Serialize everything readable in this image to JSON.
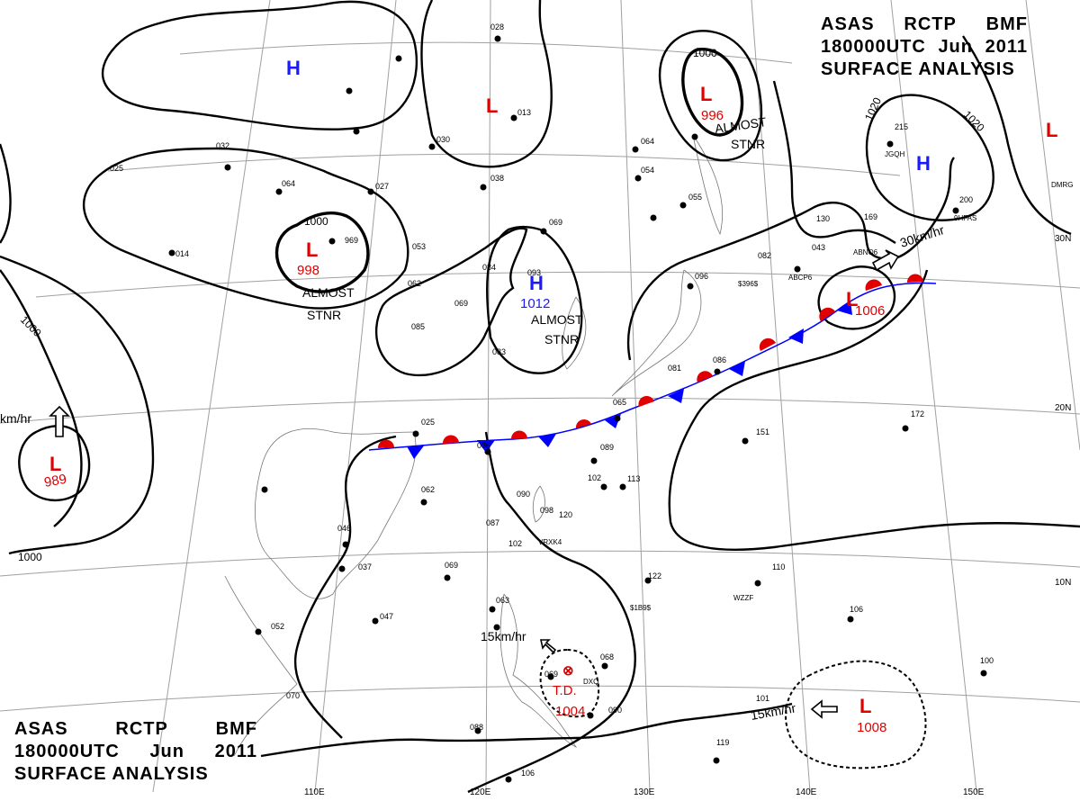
{
  "header": {
    "line1": [
      "ASAS",
      "RCTP",
      "BMF"
    ],
    "line2": [
      "180000UTC",
      "Jun",
      "2011"
    ],
    "line3": "SURFACE ANALYSIS"
  },
  "colors": {
    "high": "#1a1aff",
    "low": "#e00000",
    "warm_front": "#e00000",
    "cold_front": "#0000ff",
    "isobar": "#000000",
    "grid": "#999999"
  },
  "pressure_systems": [
    {
      "type": "H",
      "pressure": "",
      "label": "H"
    },
    {
      "type": "L",
      "pressure": "",
      "label": "L"
    },
    {
      "type": "L",
      "pressure": "996",
      "label": "L"
    },
    {
      "type": "H",
      "pressure": "",
      "label": "H"
    },
    {
      "type": "L",
      "pressure": "",
      "label": "L"
    },
    {
      "type": "L",
      "pressure": "998",
      "label": "L"
    },
    {
      "type": "H",
      "pressure": "1012",
      "label": "H"
    },
    {
      "type": "L",
      "pressure": "1006",
      "label": "L"
    },
    {
      "type": "L",
      "pressure": "989",
      "label": "L"
    },
    {
      "type": "TD",
      "pressure": "1004",
      "label": "T.D."
    },
    {
      "type": "L",
      "pressure": "1008",
      "label": "L"
    }
  ],
  "annotations": {
    "almost_stnr_1": [
      "ALMOST",
      "STNR"
    ],
    "almost_stnr_2": [
      "ALMOST",
      "STNR"
    ],
    "almost_stnr_3": [
      "ALMOST",
      "STNR"
    ],
    "speed_ne": "30km/hr",
    "speed_w": "km/hr",
    "speed_td": "15km/hr",
    "speed_se": "15km/hr"
  },
  "isobar_labels": [
    "1000",
    "1000",
    "1000",
    "1020",
    "1020",
    "1000",
    "1000"
  ],
  "longitude_labels": [
    "110E",
    "120E",
    "130E",
    "140E",
    "150E"
  ],
  "latitude_labels": [
    "30N",
    "20N",
    "10N"
  ],
  "station_numbers": [
    "028",
    "013",
    "030",
    "038",
    "069",
    "093",
    "064",
    "054",
    "055",
    "082",
    "096",
    "043",
    "169",
    "130",
    "200",
    "215",
    "032",
    "025",
    "027",
    "064",
    "969",
    "053",
    "014",
    "084",
    "062",
    "085",
    "069",
    "083",
    "025",
    "036",
    "151",
    "172",
    "089",
    "113",
    "102",
    "098",
    "120",
    "090",
    "087",
    "102",
    "062",
    "046",
    "037",
    "069",
    "122",
    "110",
    "047",
    "052",
    "106",
    "070",
    "063",
    "069",
    "068",
    "090",
    "100",
    "101",
    "088",
    "119",
    "106",
    "065",
    "086",
    "081"
  ],
  "station_codes": [
    "JGQH",
    "9HFAS",
    "DMRG",
    "ABCP6",
    "$396$",
    "ABNO6",
    "VRXK4",
    "$1B9$",
    "WZZF",
    "DXQ"
  ]
}
